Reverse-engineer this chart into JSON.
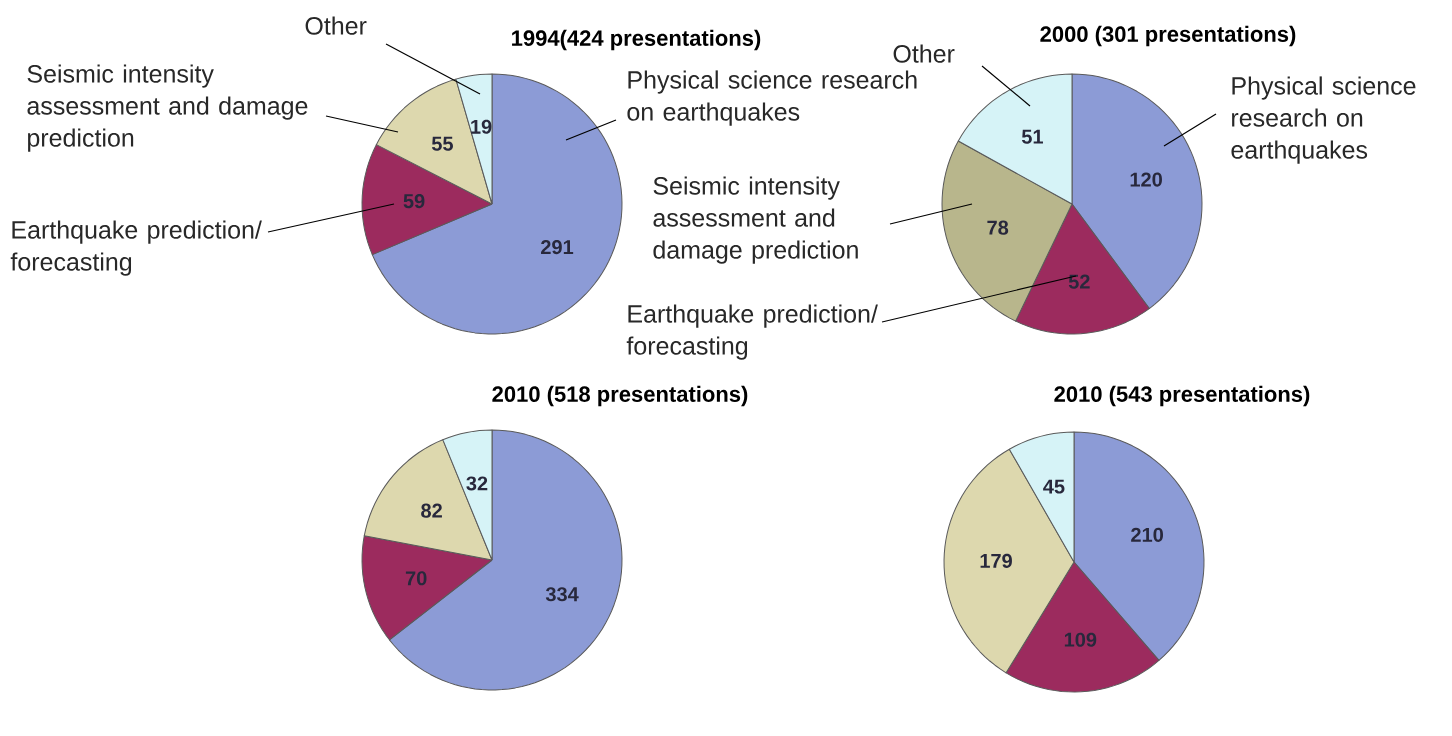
{
  "chart_data": [
    {
      "type": "pie",
      "title": "1994(424 presentations)",
      "categories": [
        "Physical science research on earthquakes",
        "Earthquake prediction/ forecasting",
        "Seismic intensity assessment and damage prediction",
        "Other"
      ],
      "values": [
        291,
        59,
        55,
        19
      ],
      "colors": [
        "#8c9bd6",
        "#9c2b5e",
        "#ddd8ae",
        "#d6f3f7"
      ],
      "data_labels": true
    },
    {
      "type": "pie",
      "title": "2000 (301 presentations)",
      "categories": [
        "Physical science research on earthquakes",
        "Earthquake prediction/ forecasting",
        "Seismic intensity assessment and damage prediction",
        "Other"
      ],
      "values": [
        120,
        52,
        78,
        51
      ],
      "colors": [
        "#8c9bd6",
        "#9c2b5e",
        "#b8b68c",
        "#d6f3f7"
      ],
      "data_labels": true
    },
    {
      "type": "pie",
      "title": "2010 (518 presentations)",
      "categories": [
        null,
        null,
        null,
        null
      ],
      "values": [
        334,
        70,
        82,
        32
      ],
      "colors": [
        "#8c9bd6",
        "#9c2b5e",
        "#ddd8ae",
        "#d6f3f7"
      ],
      "data_labels": true
    },
    {
      "type": "pie",
      "title": "2010 (543 presentations)",
      "categories": [
        null,
        null,
        null,
        null
      ],
      "values": [
        210,
        109,
        179,
        45
      ],
      "colors": [
        "#8c9bd6",
        "#9c2b5e",
        "#ddd8ae",
        "#d6f3f7"
      ],
      "data_labels": true
    }
  ]
}
